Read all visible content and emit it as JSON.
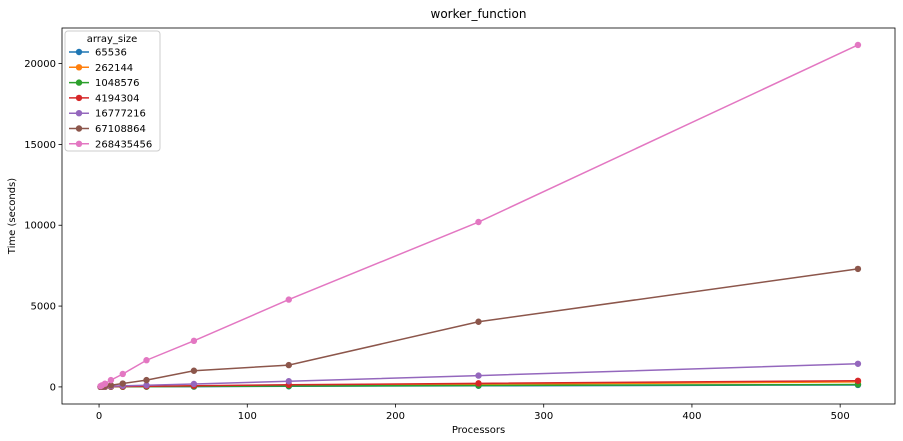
{
  "chart_data": {
    "type": "line",
    "title": "worker_function",
    "xlabel": "Processors",
    "ylabel": "Time (seconds)",
    "xlim": [
      -25,
      537
    ],
    "ylim": [
      -1057,
      22200
    ],
    "xticks": [
      0,
      100,
      200,
      300,
      400,
      500
    ],
    "yticks": [
      0,
      5000,
      10000,
      15000,
      20000
    ],
    "grid": false,
    "legend": {
      "title": "array_size",
      "placement": "top-left"
    },
    "x": [
      1,
      2,
      4,
      8,
      16,
      32,
      64,
      128,
      256,
      512
    ],
    "series": [
      {
        "name": "65536",
        "color": "#1f77b4",
        "values": [
          5,
          5,
          6,
          8,
          10,
          15,
          20,
          40,
          70,
          120
        ]
      },
      {
        "name": "262144",
        "color": "#ff7f0e",
        "values": [
          5,
          6,
          8,
          10,
          15,
          25,
          40,
          80,
          160,
          310
        ]
      },
      {
        "name": "1048576",
        "color": "#2ca02c",
        "values": [
          5,
          6,
          7,
          9,
          12,
          18,
          30,
          55,
          90,
          150
        ]
      },
      {
        "name": "4194304",
        "color": "#d62728",
        "values": [
          5,
          8,
          10,
          15,
          25,
          40,
          70,
          130,
          220,
          380
        ]
      },
      {
        "name": "16777216",
        "color": "#9467bd",
        "values": [
          10,
          15,
          25,
          40,
          70,
          100,
          180,
          350,
          700,
          1430
        ]
      },
      {
        "name": "67108864",
        "color": "#8c564b",
        "values": [
          10,
          25,
          50,
          100,
          210,
          420,
          1000,
          1350,
          4030,
          7300
        ]
      },
      {
        "name": "268435456",
        "color": "#e377c2",
        "values": [
          50,
          100,
          200,
          420,
          800,
          1650,
          2850,
          5400,
          10200,
          21150
        ]
      }
    ]
  }
}
